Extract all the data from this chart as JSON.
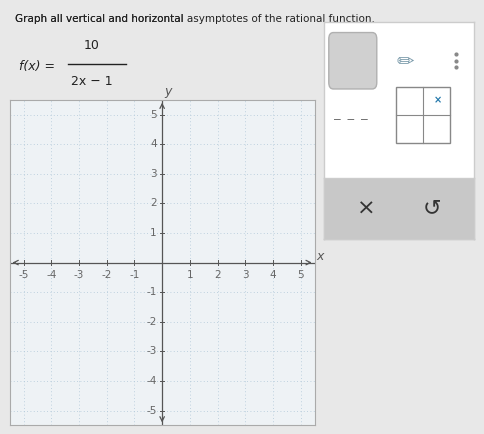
{
  "title_text": "Graph all vertical and horizontal asymptotes of the rational function.",
  "title_underline_words": [
    "asymptotes",
    "rational function"
  ],
  "function_text": "f(x) =      10\n         —————\n         2x − 1",
  "xlabel": "x",
  "ylabel": "y",
  "xlim": [
    -5.5,
    5.5
  ],
  "ylim": [
    -5.5,
    5.5
  ],
  "xticks": [
    -5,
    -4,
    -3,
    -2,
    -1,
    1,
    2,
    3,
    4,
    5
  ],
  "yticks": [
    -5,
    -4,
    -3,
    -2,
    -1,
    1,
    2,
    3,
    4,
    5
  ],
  "grid_color": "#aec6d8",
  "axis_color": "#555555",
  "bg_color": "#e8e8e8",
  "plot_bg_color": "#eef2f5",
  "border_color": "#aaaaaa",
  "tick_label_color": "#666666",
  "tick_fontsize": 7.5,
  "axis_label_fontsize": 9,
  "toolbar_bg": "#ffffff",
  "toolbar_border": "#cccccc",
  "bottom_bar_bg": "#c8c8c8"
}
